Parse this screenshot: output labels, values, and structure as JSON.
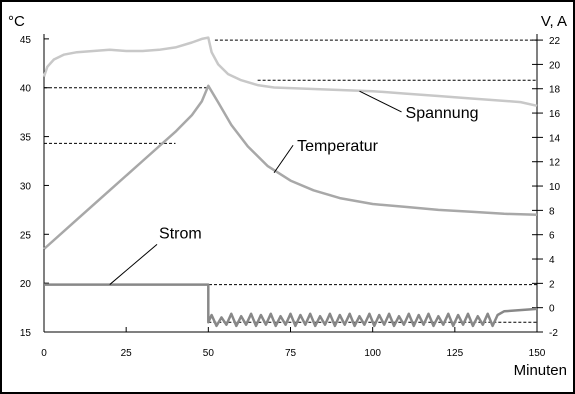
{
  "chart_data": {
    "type": "line",
    "x_unit_label": "Minuten",
    "y_left_unit_label": "°C",
    "y_right_unit_label": "V, A",
    "x_ticks": [
      0,
      25,
      50,
      75,
      100,
      125,
      150
    ],
    "y_left_ticks": [
      15,
      20,
      25,
      30,
      35,
      40,
      45
    ],
    "y_right_ticks": [
      -2,
      0,
      2,
      4,
      6,
      8,
      10,
      12,
      14,
      16,
      18,
      20,
      22
    ],
    "xlim": [
      0,
      150
    ],
    "ylim_left": [
      15,
      45.5
    ],
    "ylim_right": [
      -2,
      22.5
    ],
    "grid": false,
    "series": [
      {
        "name": "Temperatur",
        "axis": "left",
        "color": "#a8a8a8",
        "x": [
          0,
          10,
          20,
          30,
          40,
          45,
          48,
          50,
          53,
          57,
          62,
          68,
          75,
          82,
          90,
          100,
          110,
          120,
          130,
          140,
          150
        ],
        "y": [
          23.5,
          26.5,
          29.5,
          32.5,
          35.5,
          37.2,
          38.6,
          40.2,
          38.5,
          36.2,
          34.0,
          32.0,
          30.5,
          29.5,
          28.7,
          28.1,
          27.8,
          27.5,
          27.3,
          27.1,
          27.0
        ]
      },
      {
        "name": "Spannung",
        "axis": "right",
        "color": "#c8c8c8",
        "x": [
          0,
          1,
          3,
          6,
          10,
          15,
          20,
          25,
          30,
          35,
          40,
          45,
          48,
          50,
          51,
          53,
          56,
          60,
          65,
          70,
          80,
          90,
          100,
          110,
          120,
          130,
          140,
          145,
          150
        ],
        "y": [
          19.0,
          19.8,
          20.4,
          20.8,
          21.0,
          21.1,
          21.2,
          21.1,
          21.1,
          21.2,
          21.4,
          21.8,
          22.1,
          22.2,
          21.0,
          20.0,
          19.2,
          18.7,
          18.3,
          18.1,
          18.0,
          17.9,
          17.8,
          17.6,
          17.4,
          17.2,
          17.0,
          16.9,
          16.6
        ]
      },
      {
        "name": "Strom",
        "axis": "right",
        "color": "#888888",
        "x": [
          0,
          50,
          50,
          51,
          52.5,
          54,
          55.5,
          57,
          58.5,
          60,
          61.5,
          63,
          64.5,
          66,
          67.5,
          69,
          70.5,
          72,
          73.5,
          75,
          76.5,
          78,
          79.5,
          81,
          82.5,
          84,
          85.5,
          87,
          88.5,
          90,
          91.5,
          93,
          94.5,
          96,
          97.5,
          99,
          100.5,
          102,
          103.5,
          105,
          106.5,
          108,
          109.5,
          111,
          112.5,
          114,
          115.5,
          117,
          118.5,
          120,
          121.5,
          123,
          124.5,
          126,
          127.5,
          129,
          130.5,
          132,
          133.5,
          135,
          136.5,
          138,
          140,
          150
        ],
        "y": [
          1.9,
          1.9,
          -1.2,
          -0.6,
          -1.5,
          -0.8,
          -1.4,
          -0.5,
          -1.5,
          -0.7,
          -1.4,
          -0.5,
          -1.5,
          -0.6,
          -1.4,
          -0.5,
          -1.5,
          -0.7,
          -1.4,
          -0.5,
          -1.5,
          -0.6,
          -1.4,
          -0.5,
          -1.5,
          -0.7,
          -1.4,
          -0.5,
          -1.5,
          -0.6,
          -1.4,
          -0.5,
          -1.5,
          -0.7,
          -1.4,
          -0.5,
          -1.5,
          -0.6,
          -1.4,
          -0.5,
          -1.5,
          -0.7,
          -1.4,
          -0.5,
          -1.5,
          -0.6,
          -1.4,
          -0.5,
          -1.5,
          -0.7,
          -1.4,
          -0.5,
          -1.5,
          -0.6,
          -1.4,
          -0.5,
          -1.5,
          -0.7,
          -1.4,
          -0.5,
          -1.5,
          -0.6,
          -0.3,
          -0.1
        ]
      }
    ],
    "reference_lines": [
      {
        "axis": "right",
        "y": 22,
        "x_from": 52,
        "x_to": 150
      },
      {
        "axis": "right",
        "y": 18.7,
        "x_from": 65,
        "x_to": 150
      },
      {
        "axis": "left",
        "y": 40,
        "x_from": 0,
        "x_to": 50
      },
      {
        "axis": "left",
        "y": 34.3,
        "x_from": 0,
        "x_to": 40
      },
      {
        "axis": "right",
        "y": 1.9,
        "x_from": 0,
        "x_to": 150
      },
      {
        "axis": "right",
        "y": -1.2,
        "x_from": 50,
        "x_to": 150
      }
    ],
    "annotations": [
      {
        "id": "spannung",
        "text": "Spannung",
        "axis": "right",
        "point_x": 96,
        "point_y": 17.8,
        "label_x": 110,
        "label_y": 15.6
      },
      {
        "id": "temperatur",
        "text": "Temperatur",
        "axis": "left",
        "point_x": 70,
        "point_y": 31.3,
        "label_x": 77,
        "label_y": 33.5
      },
      {
        "id": "strom",
        "text": "Strom",
        "axis": "right",
        "point_x": 20,
        "point_y": 1.9,
        "label_x": 35,
        "label_y": 5.7
      }
    ]
  }
}
